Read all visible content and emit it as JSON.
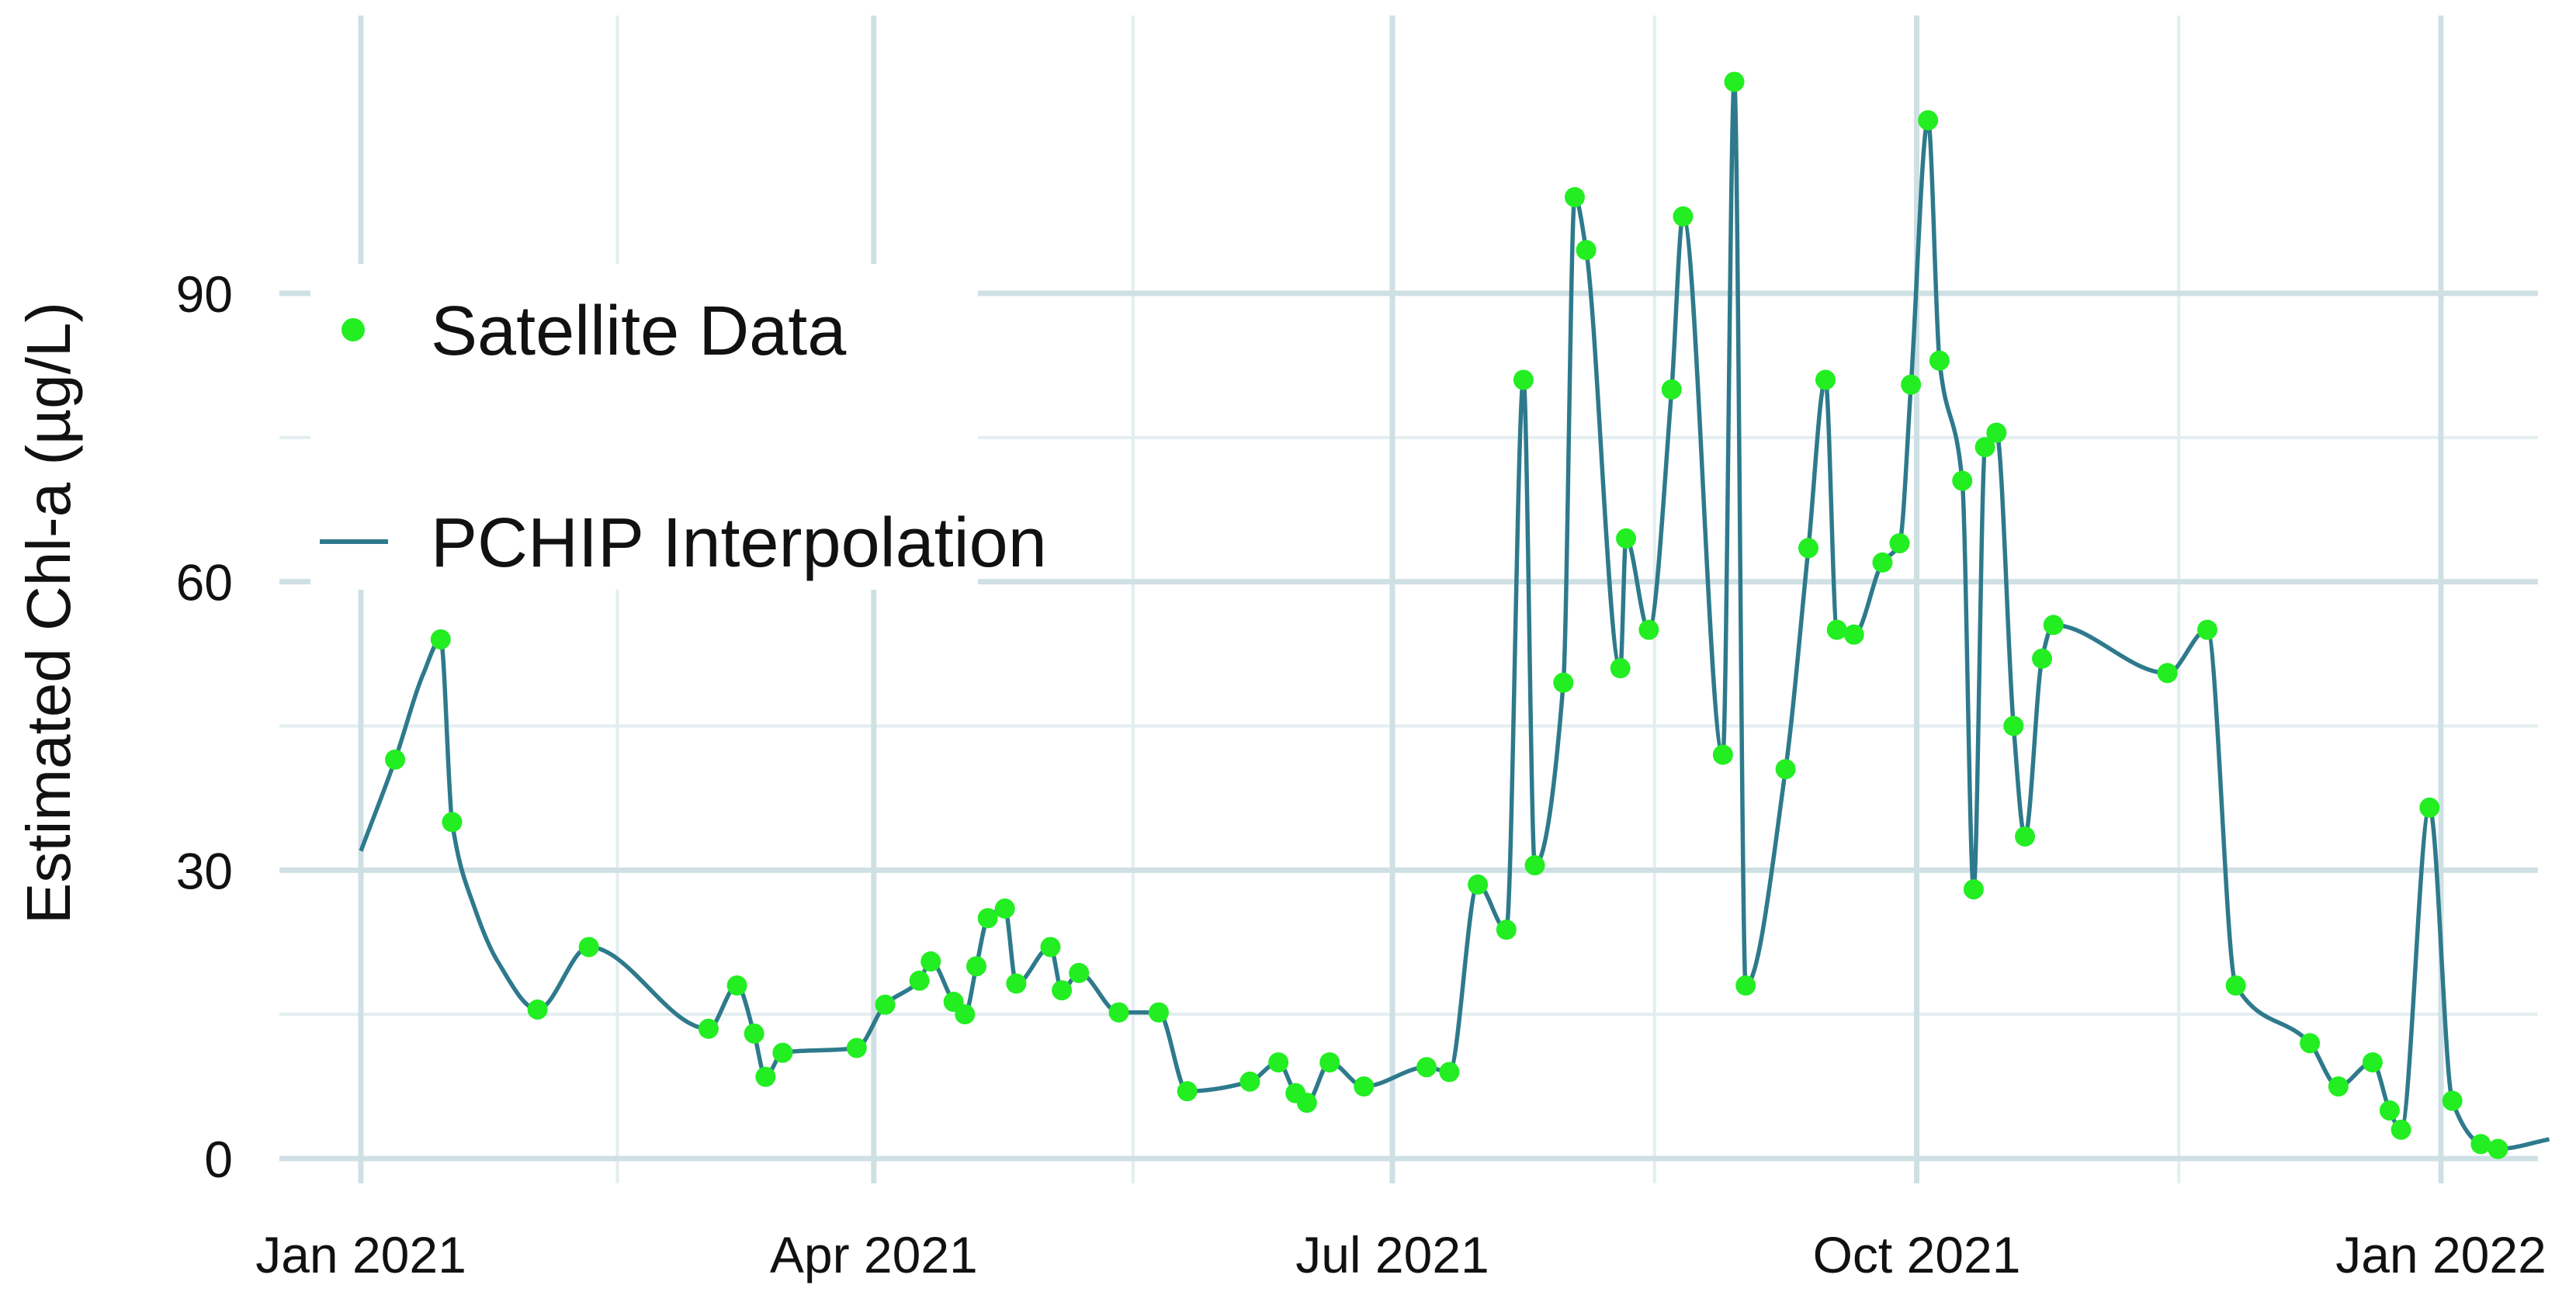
{
  "chart_data": {
    "type": "line",
    "ylabel": "Estimated Chl-a (µg/L)",
    "xlabel": "",
    "xlim": [
      "2021-01-01",
      "2022-01-03"
    ],
    "ylim": [
      -4,
      114
    ],
    "y_ticks": [
      0,
      30,
      60,
      90
    ],
    "y_tick_labels": [
      "0",
      "30",
      "60",
      "90"
    ],
    "x_ticks": [
      "2021-01-01",
      "2021-04-01",
      "2021-07-01",
      "2021-10-01",
      "2022-01-01"
    ],
    "x_tick_labels": [
      "Jan 2021",
      "Apr 2021",
      "Jul 2021",
      "Oct 2021",
      "Jan 2022"
    ],
    "grid": true,
    "legend_position": "top-left",
    "legend": [
      {
        "label": "Satellite Data",
        "symbol": "circle",
        "color": "#22ee22"
      },
      {
        "label": "PCHIP Interpolation",
        "symbol": "line",
        "color": "#2e7a8c"
      }
    ],
    "colors": {
      "points": "#22ee22",
      "line": "#2e7a8c",
      "grid": "#cfe0e4"
    },
    "series": [
      {
        "name": "Satellite Data",
        "kind": "scatter",
        "points": [
          [
            "2021-01-07",
            41.5
          ],
          [
            "2021-01-15",
            54.0
          ],
          [
            "2021-01-17",
            35.0
          ],
          [
            "2021-02-01",
            15.5
          ],
          [
            "2021-02-10",
            22.0
          ],
          [
            "2021-03-03",
            13.5
          ],
          [
            "2021-03-08",
            18.0
          ],
          [
            "2021-03-11",
            13.0
          ],
          [
            "2021-03-13",
            8.5
          ],
          [
            "2021-03-16",
            11.0
          ],
          [
            "2021-03-29",
            11.5
          ],
          [
            "2021-04-03",
            16.0
          ],
          [
            "2021-04-09",
            18.5
          ],
          [
            "2021-04-11",
            20.5
          ],
          [
            "2021-04-15",
            16.3
          ],
          [
            "2021-04-17",
            15.0
          ],
          [
            "2021-04-19",
            20.0
          ],
          [
            "2021-04-21",
            25.0
          ],
          [
            "2021-04-24",
            26.0
          ],
          [
            "2021-04-26",
            18.2
          ],
          [
            "2021-05-02",
            22.0
          ],
          [
            "2021-05-04",
            17.5
          ],
          [
            "2021-05-07",
            19.3
          ],
          [
            "2021-05-14",
            15.2
          ],
          [
            "2021-05-21",
            15.2
          ],
          [
            "2021-05-26",
            7.0
          ],
          [
            "2021-06-06",
            8.0
          ],
          [
            "2021-06-11",
            10.0
          ],
          [
            "2021-06-14",
            6.8
          ],
          [
            "2021-06-16",
            5.8
          ],
          [
            "2021-06-20",
            10.0
          ],
          [
            "2021-06-26",
            7.5
          ],
          [
            "2021-07-07",
            9.5
          ],
          [
            "2021-07-11",
            9.0
          ],
          [
            "2021-07-16",
            28.5
          ],
          [
            "2021-07-21",
            23.8
          ],
          [
            "2021-07-24",
            81.0
          ],
          [
            "2021-07-26",
            30.5
          ],
          [
            "2021-07-31",
            49.5
          ],
          [
            "2021-08-02",
            100.0
          ],
          [
            "2021-08-04",
            94.5
          ],
          [
            "2021-08-10",
            51.0
          ],
          [
            "2021-08-11",
            64.5
          ],
          [
            "2021-08-15",
            55.0
          ],
          [
            "2021-08-19",
            80.0
          ],
          [
            "2021-08-21",
            98.0
          ],
          [
            "2021-08-28",
            42.0
          ],
          [
            "2021-08-30",
            112.0
          ],
          [
            "2021-09-01",
            18.0
          ],
          [
            "2021-09-08",
            40.5
          ],
          [
            "2021-09-12",
            63.5
          ],
          [
            "2021-09-15",
            81.0
          ],
          [
            "2021-09-17",
            55.0
          ],
          [
            "2021-09-20",
            54.5
          ],
          [
            "2021-09-25",
            62.0
          ],
          [
            "2021-09-28",
            64.0
          ],
          [
            "2021-09-30",
            80.5
          ],
          [
            "2021-10-03",
            108.0
          ],
          [
            "2021-10-05",
            83.0
          ],
          [
            "2021-10-09",
            70.5
          ],
          [
            "2021-10-11",
            28.0
          ],
          [
            "2021-10-13",
            74.0
          ],
          [
            "2021-10-15",
            75.5
          ],
          [
            "2021-10-18",
            45.0
          ],
          [
            "2021-10-20",
            33.5
          ],
          [
            "2021-10-23",
            52.0
          ],
          [
            "2021-10-25",
            55.5
          ],
          [
            "2021-11-14",
            50.5
          ],
          [
            "2021-11-21",
            55.0
          ],
          [
            "2021-11-26",
            18.0
          ],
          [
            "2021-12-09",
            12.0
          ],
          [
            "2021-12-14",
            7.5
          ],
          [
            "2021-12-20",
            10.0
          ],
          [
            "2021-12-23",
            5.0
          ],
          [
            "2021-12-25",
            3.0
          ],
          [
            "2021-12-30",
            36.5
          ],
          [
            "2022-01-03",
            6.0
          ],
          [
            "2022-01-08",
            1.5
          ],
          [
            "2022-01-11",
            1.0
          ]
        ]
      },
      {
        "name": "PCHIP Interpolation",
        "kind": "line",
        "points": [
          [
            "2021-01-01",
            32.0
          ],
          [
            "2021-01-07",
            41.5
          ],
          [
            "2021-01-12",
            50.5
          ],
          [
            "2021-01-15",
            54.0
          ],
          [
            "2021-01-17",
            35.0
          ],
          [
            "2021-01-21",
            26.0
          ],
          [
            "2021-01-25",
            20.5
          ],
          [
            "2021-02-01",
            15.5
          ],
          [
            "2021-02-10",
            22.0
          ],
          [
            "2021-03-03",
            13.5
          ],
          [
            "2021-03-08",
            18.0
          ],
          [
            "2021-03-11",
            13.0
          ],
          [
            "2021-03-13",
            8.5
          ],
          [
            "2021-03-16",
            11.0
          ],
          [
            "2021-03-29",
            11.5
          ],
          [
            "2021-04-03",
            16.0
          ],
          [
            "2021-04-09",
            18.5
          ],
          [
            "2021-04-11",
            20.5
          ],
          [
            "2021-04-15",
            16.3
          ],
          [
            "2021-04-17",
            15.0
          ],
          [
            "2021-04-19",
            20.0
          ],
          [
            "2021-04-21",
            25.0
          ],
          [
            "2021-04-24",
            26.0
          ],
          [
            "2021-04-26",
            18.2
          ],
          [
            "2021-05-02",
            22.0
          ],
          [
            "2021-05-04",
            17.5
          ],
          [
            "2021-05-07",
            19.3
          ],
          [
            "2021-05-14",
            15.2
          ],
          [
            "2021-05-21",
            15.2
          ],
          [
            "2021-05-26",
            7.0
          ],
          [
            "2021-06-06",
            8.0
          ],
          [
            "2021-06-11",
            10.0
          ],
          [
            "2021-06-14",
            6.8
          ],
          [
            "2021-06-16",
            5.8
          ],
          [
            "2021-06-20",
            10.0
          ],
          [
            "2021-06-26",
            7.5
          ],
          [
            "2021-07-07",
            9.5
          ],
          [
            "2021-07-11",
            9.0
          ],
          [
            "2021-07-16",
            28.5
          ],
          [
            "2021-07-21",
            23.8
          ],
          [
            "2021-07-24",
            81.0
          ],
          [
            "2021-07-26",
            30.5
          ],
          [
            "2021-07-31",
            49.5
          ],
          [
            "2021-08-02",
            100.0
          ],
          [
            "2021-08-04",
            94.5
          ],
          [
            "2021-08-10",
            51.0
          ],
          [
            "2021-08-11",
            64.5
          ],
          [
            "2021-08-15",
            55.0
          ],
          [
            "2021-08-19",
            80.0
          ],
          [
            "2021-08-21",
            98.0
          ],
          [
            "2021-08-28",
            42.0
          ],
          [
            "2021-08-30",
            112.0
          ],
          [
            "2021-09-01",
            18.0
          ],
          [
            "2021-09-08",
            40.5
          ],
          [
            "2021-09-12",
            63.5
          ],
          [
            "2021-09-15",
            81.0
          ],
          [
            "2021-09-17",
            55.0
          ],
          [
            "2021-09-20",
            54.5
          ],
          [
            "2021-09-25",
            62.0
          ],
          [
            "2021-09-28",
            64.0
          ],
          [
            "2021-09-30",
            80.5
          ],
          [
            "2021-10-03",
            108.0
          ],
          [
            "2021-10-05",
            83.0
          ],
          [
            "2021-10-09",
            70.5
          ],
          [
            "2021-10-11",
            28.0
          ],
          [
            "2021-10-13",
            74.0
          ],
          [
            "2021-10-15",
            75.5
          ],
          [
            "2021-10-18",
            45.0
          ],
          [
            "2021-10-20",
            33.5
          ],
          [
            "2021-10-23",
            52.0
          ],
          [
            "2021-10-25",
            55.5
          ],
          [
            "2021-11-14",
            50.5
          ],
          [
            "2021-11-21",
            55.0
          ],
          [
            "2021-11-26",
            18.0
          ],
          [
            "2021-12-09",
            12.0
          ],
          [
            "2021-12-14",
            7.5
          ],
          [
            "2021-12-20",
            10.0
          ],
          [
            "2021-12-23",
            5.0
          ],
          [
            "2021-12-25",
            3.0
          ],
          [
            "2021-12-30",
            36.5
          ],
          [
            "2022-01-03",
            6.0
          ],
          [
            "2022-01-08",
            1.5
          ],
          [
            "2022-01-11",
            1.0
          ],
          [
            "2022-01-20",
            2.0
          ]
        ]
      }
    ]
  }
}
